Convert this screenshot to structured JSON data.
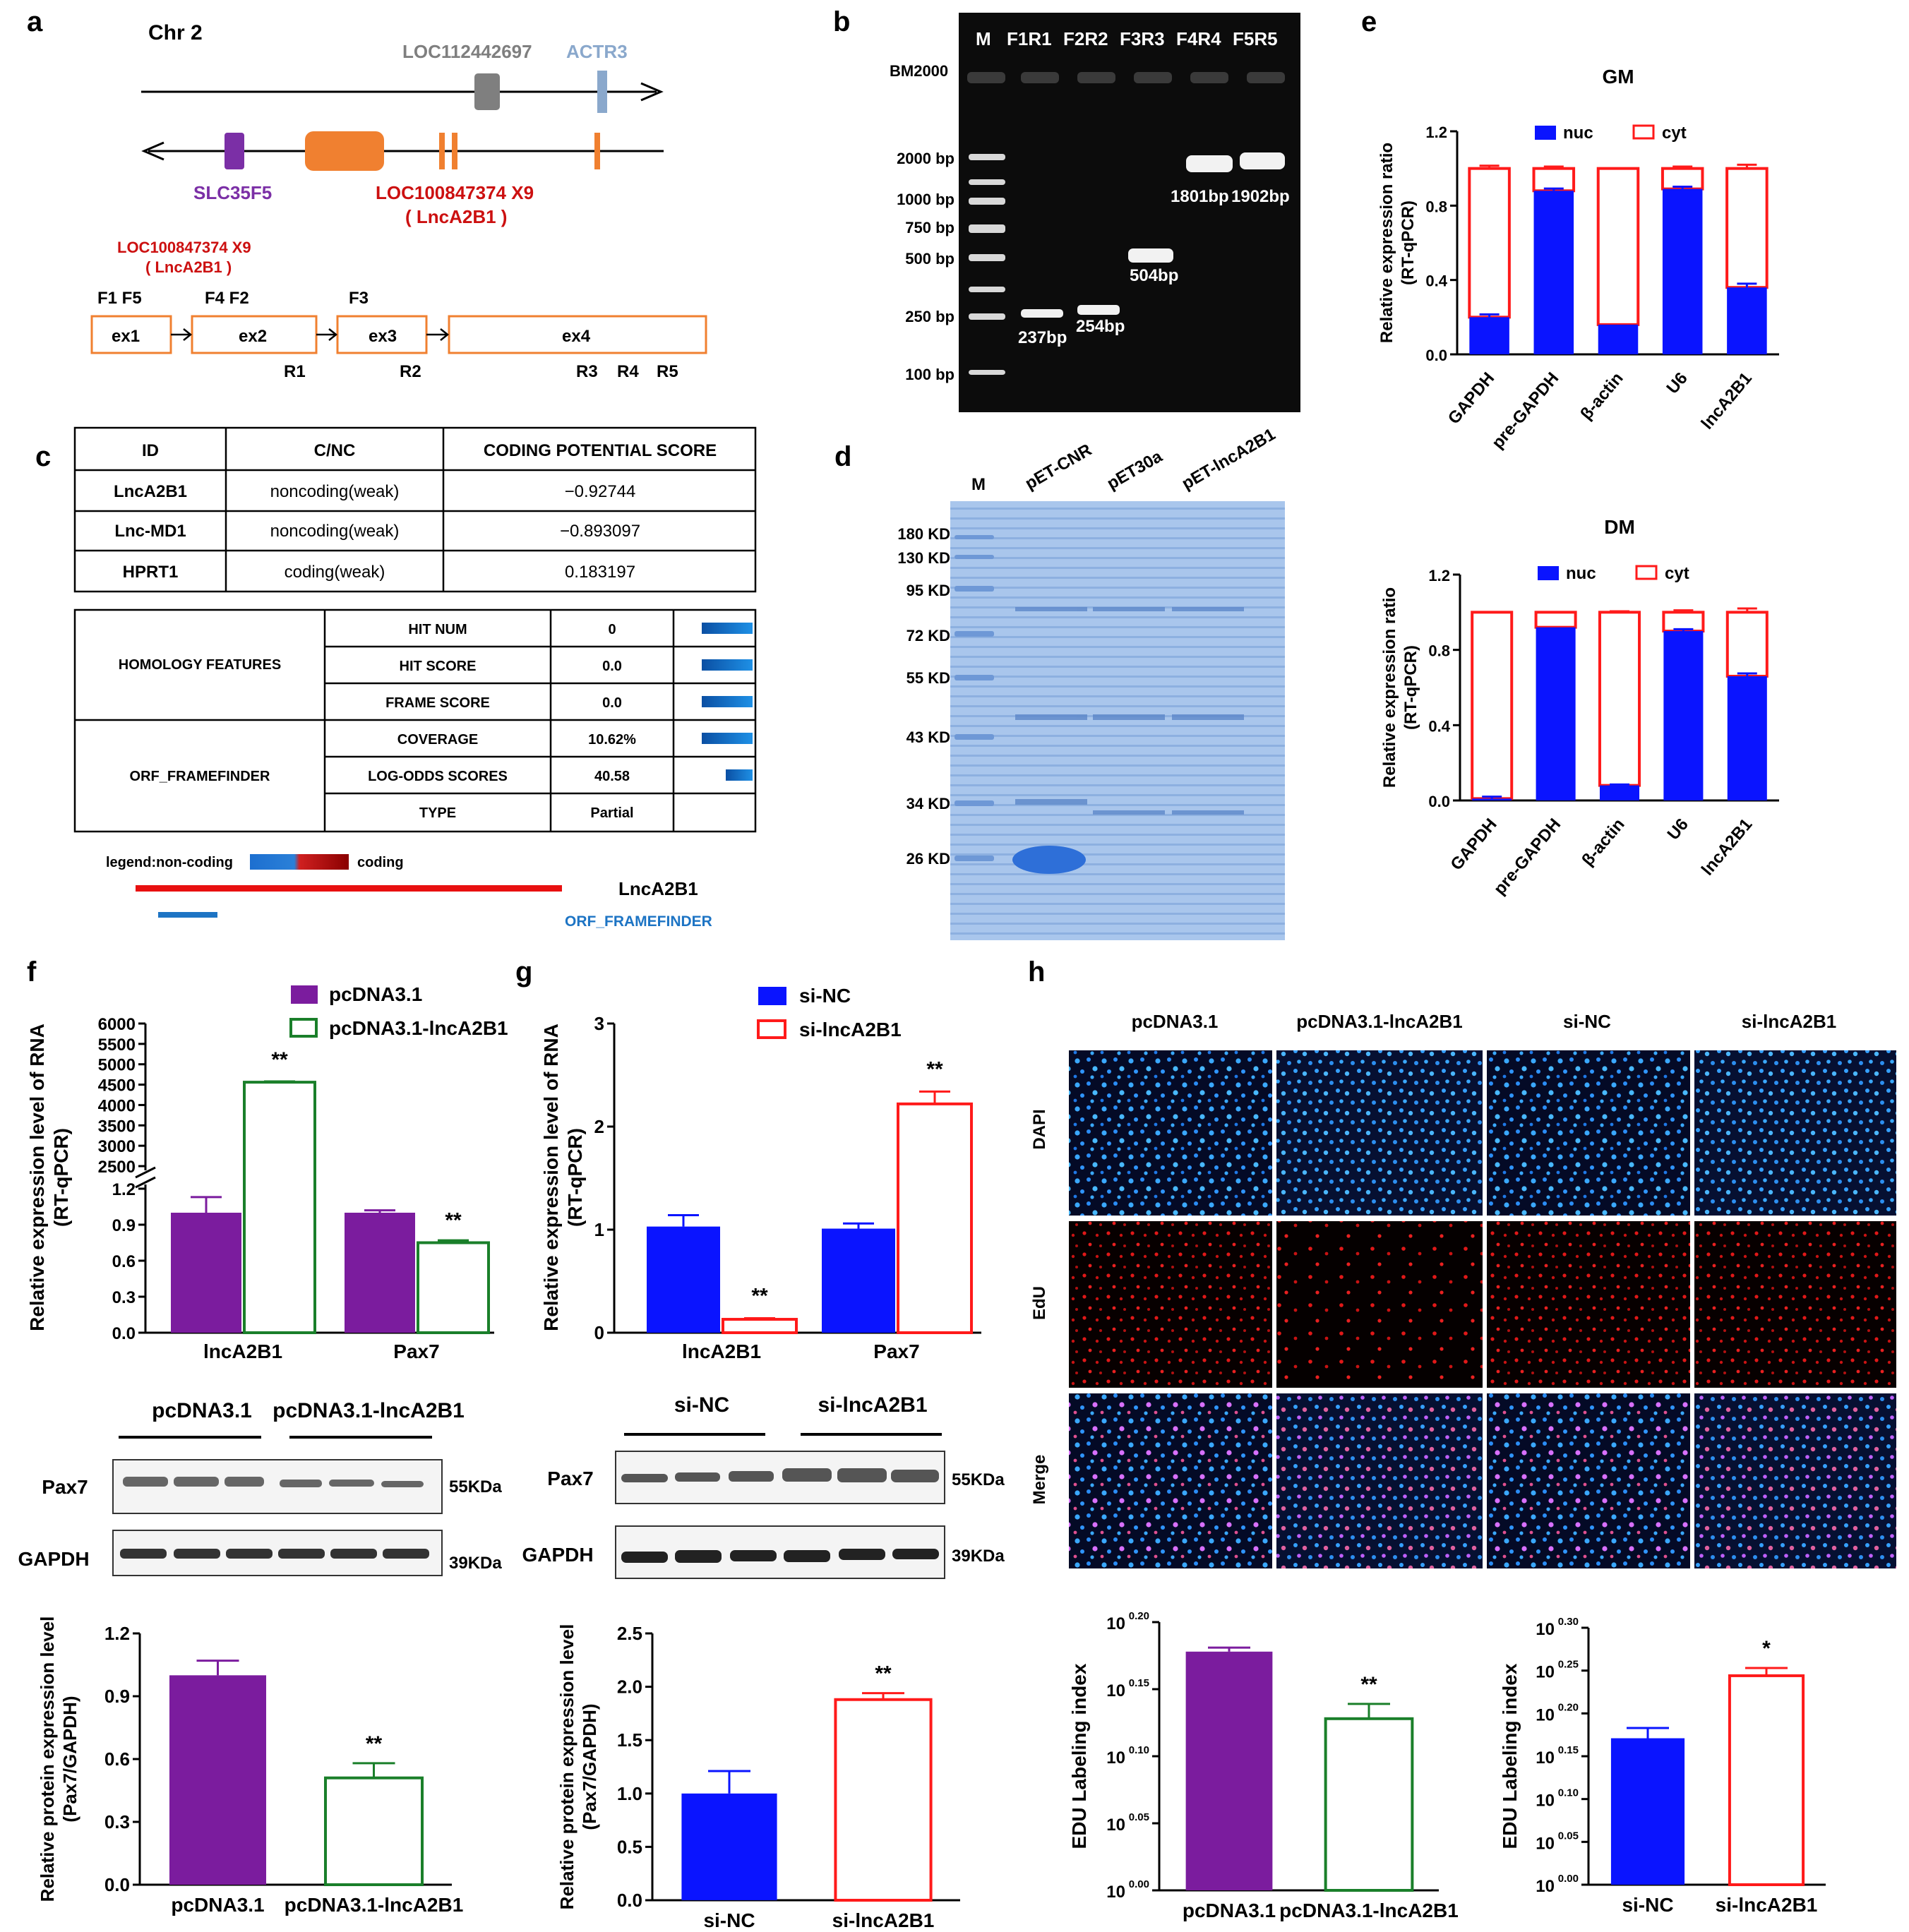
{
  "panel_labels": [
    "a",
    "b",
    "c",
    "d",
    "e",
    "f",
    "g",
    "h"
  ],
  "colors": {
    "purple": "#7b1c9e",
    "green": "#1a7f2a",
    "blue": "#0a14ff",
    "red": "#ff1a1a",
    "exon_orange": "#f08030",
    "gene_red": "#cc1010",
    "orf_blue": "#1d74c4",
    "grey_gene": "#7f7f7f",
    "actr3_blue": "#8aa8cc",
    "slc_purple": "#7b2fa6"
  },
  "a": {
    "chr": "Chr 2",
    "loc112442697": "LOC112442697",
    "actr3": "ACTR3",
    "slc35f5": "SLC35F5",
    "loc_main": "LOC100847374 X9",
    "lnc_paren": "( LncA2B1 )",
    "loc_sub": "LOC100847374 X9",
    "lnc_sub": "( LncA2B1 )",
    "primers_top": [
      "F1 F5",
      "F4 F2",
      "F3"
    ],
    "exons": [
      "ex1",
      "ex2",
      "ex3",
      "ex4"
    ],
    "primers_bottom": [
      "R1",
      "R2",
      "R3",
      "R4",
      "R5"
    ]
  },
  "b": {
    "lanes": [
      "M",
      "F1R1",
      "F2R2",
      "F3R3",
      "F4R4",
      "F5R5"
    ],
    "marker_name": "BM2000",
    "ladder": [
      "2000 bp",
      "1000 bp",
      "750 bp",
      "500 bp",
      "250 bp",
      "100 bp"
    ],
    "bands": [
      "237bp",
      "254bp",
      "504bp",
      "1801bp",
      "1902bp"
    ]
  },
  "c": {
    "headers": [
      "ID",
      "C/NC",
      "CODING POTENTIAL SCORE"
    ],
    "rows": [
      [
        "LncA2B1",
        "noncoding(weak)",
        "−0.92744"
      ],
      [
        "Lnc-MD1",
        "noncoding(weak)",
        "−0.893097"
      ],
      [
        "HPRT1",
        "coding(weak)",
        "0.183197"
      ]
    ],
    "homology": "HOMOLOGY FEATURES",
    "orf": "ORF_FRAMEFINDER",
    "features": [
      {
        "name": "HIT NUM",
        "value": "0",
        "bar": 0.72
      },
      {
        "name": "HIT SCORE",
        "value": "0.0",
        "bar": 0.72
      },
      {
        "name": "FRAME SCORE",
        "value": "0.0",
        "bar": 0.72
      },
      {
        "name": "COVERAGE",
        "value": "10.62%",
        "bar": 0.72
      },
      {
        "name": "LOG-ODDS SCORES",
        "value": "40.58",
        "bar": 0.38
      },
      {
        "name": "TYPE",
        "value": "Partial",
        "bar": 0
      }
    ],
    "legend_left": "legend:non-coding",
    "legend_right": "coding",
    "track_lnc": "LncA2B1",
    "track_orf": "ORF_FRAMEFINDER"
  },
  "d": {
    "lanes": [
      "M",
      "pET-CNR",
      "pET30a",
      "pET-lncA2B1"
    ],
    "markers": [
      "180 KD",
      "130 KD",
      "95 KD",
      "72 KD",
      "55 KD",
      "43 KD",
      "34 KD",
      "26 KD"
    ]
  },
  "h": {
    "columns": [
      "pcDNA3.1",
      "pcDNA3.1-lncA2B1",
      "si-NC",
      "si-lncA2B1"
    ],
    "rows": [
      "DAPI",
      "EdU",
      "Merge"
    ]
  },
  "blots": {
    "f": {
      "groups": [
        "pcDNA3.1",
        "pcDNA3.1-lncA2B1"
      ],
      "rows": [
        "Pax7",
        "GAPDH"
      ],
      "sizes": [
        "55KDa",
        "39KDa"
      ]
    },
    "g": {
      "groups": [
        "si-NC",
        "si-lncA2B1"
      ],
      "rows": [
        "Pax7",
        "GAPDH"
      ],
      "sizes": [
        "55KDa",
        "39KDa"
      ]
    }
  },
  "chart_data": [
    {
      "id": "e-GM",
      "type": "bar",
      "stacked": true,
      "title": "GM",
      "ylabel": "Relative expression ratio\n(RT-qPCR)",
      "categories": [
        "GAPDH",
        "pre-GAPDH",
        "β-actin",
        "U6",
        "lncA2B1"
      ],
      "series": [
        {
          "name": "nuc",
          "values": [
            0.2,
            0.88,
            0.16,
            0.89,
            0.36
          ],
          "err": [
            0.015,
            0.012,
            0.0,
            0.012,
            0.02
          ]
        },
        {
          "name": "cyt",
          "values": [
            0.8,
            0.12,
            0.84,
            0.11,
            0.64
          ],
          "err": [
            0.015,
            0.01,
            0.0,
            0.01,
            0.02
          ]
        }
      ],
      "ylim": [
        0,
        1.2
      ],
      "yticks": [
        "0.0",
        "0.4",
        "0.8",
        "1.2"
      ]
    },
    {
      "id": "e-DM",
      "type": "bar",
      "stacked": true,
      "title": "DM",
      "ylabel": "Relative expression ratio\n(RT-qPCR)",
      "categories": [
        "GAPDH",
        "pre-GAPDH",
        "β-actin",
        "U6",
        "lncA2B1"
      ],
      "series": [
        {
          "name": "nuc",
          "values": [
            0.01,
            0.92,
            0.08,
            0.9,
            0.66
          ],
          "err": [
            0.01,
            0.0,
            0.005,
            0.01,
            0.015
          ]
        },
        {
          "name": "cyt",
          "values": [
            0.99,
            0.08,
            0.92,
            0.1,
            0.34
          ],
          "err": [
            0.0,
            0.0,
            0.005,
            0.01,
            0.02
          ]
        }
      ],
      "ylim": [
        0,
        1.2
      ],
      "yticks": [
        "0.0",
        "0.4",
        "0.8",
        "1.2"
      ]
    },
    {
      "id": "f-rna",
      "type": "bar",
      "broken_axis": true,
      "ylabel": "Relative expression level of RNA\n(RT-qPCR)",
      "categories": [
        "lncA2B1",
        "Pax7"
      ],
      "series": [
        {
          "name": "pcDNA3.1",
          "values": [
            1.0,
            1.0
          ],
          "err": [
            0.13,
            0.02
          ]
        },
        {
          "name": "pcDNA3.1-lncA2B1",
          "values": [
            4560,
            0.75
          ],
          "err": [
            20,
            0.02
          ]
        }
      ],
      "significance": [
        "**",
        "**"
      ],
      "yticks_low": [
        "0.0",
        "0.3",
        "0.6",
        "0.9",
        "1.2"
      ],
      "yticks_high": [
        "2500",
        "3000",
        "3500",
        "4000",
        "4500",
        "5000",
        "5500",
        "6000"
      ]
    },
    {
      "id": "g-rna",
      "type": "bar",
      "ylabel": "Relative expression level of RNA\n(RT-qPCR)",
      "categories": [
        "lncA2B1",
        "Pax7"
      ],
      "series": [
        {
          "name": "si-NC",
          "values": [
            1.03,
            1.01
          ],
          "err": [
            0.11,
            0.05
          ]
        },
        {
          "name": "si-lncA2B1",
          "values": [
            0.13,
            2.22
          ],
          "err": [
            0.01,
            0.12
          ]
        }
      ],
      "significance": [
        "**",
        "**"
      ],
      "ylim": [
        0,
        3
      ],
      "yticks": [
        "0",
        "1",
        "2",
        "3"
      ]
    },
    {
      "id": "f-protein",
      "type": "bar",
      "ylabel": "Relative protein expression level\n(Pax7/GAPDH)",
      "categories": [
        "pcDNA3.1",
        "pcDNA3.1-lncA2B1"
      ],
      "values": [
        1.0,
        0.51
      ],
      "err": [
        0.07,
        0.07
      ],
      "significance": [
        "",
        "**"
      ],
      "ylim": [
        0,
        1.2
      ],
      "yticks": [
        "0.0",
        "0.3",
        "0.6",
        "0.9",
        "1.2"
      ]
    },
    {
      "id": "g-protein",
      "type": "bar",
      "ylabel": "Relative protein expression level\n(Pax7/GAPDH)",
      "categories": [
        "si-NC",
        "si-lncA2B1"
      ],
      "values": [
        1.0,
        1.88
      ],
      "err": [
        0.21,
        0.06
      ],
      "significance": [
        "",
        "**"
      ],
      "ylim": [
        0,
        2.5
      ],
      "yticks": [
        "0.0",
        "0.5",
        "1.0",
        "1.5",
        "2.0",
        "2.5"
      ]
    },
    {
      "id": "h-edu-1",
      "type": "bar",
      "log_exponent_axis": true,
      "ylabel": "EDU Labeling index",
      "categories": [
        "pcDNA3.1",
        "pcDNA3.1-lncA2B1"
      ],
      "values": [
        0.178,
        0.128
      ],
      "err": [
        0.003,
        0.011
      ],
      "significance": [
        "",
        "**"
      ],
      "ylim": [
        0,
        0.2
      ],
      "ytick_exponents": [
        "0.00",
        "0.05",
        "0.10",
        "0.15",
        "0.20"
      ]
    },
    {
      "id": "h-edu-2",
      "type": "bar",
      "log_exponent_axis": true,
      "ylabel": "EDU Labeling index",
      "categories": [
        "si-NC",
        "si-lncA2B1"
      ],
      "values": [
        0.171,
        0.244
      ],
      "err": [
        0.012,
        0.009
      ],
      "significance": [
        "",
        "*"
      ],
      "ylim": [
        0,
        0.3
      ],
      "ytick_exponents": [
        "0.00",
        "0.05",
        "0.10",
        "0.15",
        "0.20",
        "0.25",
        "0.30"
      ]
    }
  ]
}
